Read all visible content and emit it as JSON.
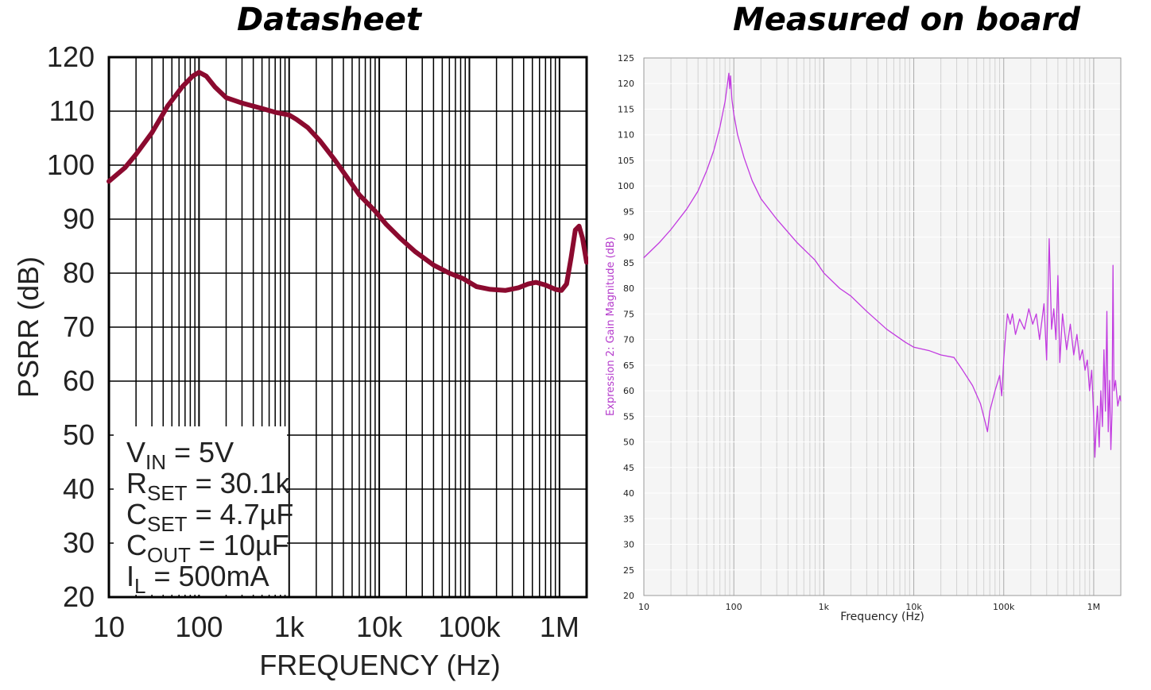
{
  "chart_data": [
    {
      "type": "line",
      "title": "Datasheet",
      "xlabel": "FREQUENCY (Hz)",
      "ylabel": "PSRR (dB)",
      "xscale": "log",
      "xlim": [
        10,
        2000000
      ],
      "ylim": [
        20,
        120
      ],
      "grid": true,
      "x_ticks": [
        {
          "value": 10,
          "label": "10"
        },
        {
          "value": 100,
          "label": "100"
        },
        {
          "value": 1000,
          "label": "1k"
        },
        {
          "value": 10000,
          "label": "10k"
        },
        {
          "value": 100000,
          "label": "100k"
        },
        {
          "value": 1000000,
          "label": "1M"
        }
      ],
      "y_ticks": [
        20,
        30,
        40,
        50,
        60,
        70,
        80,
        90,
        100,
        110,
        120
      ],
      "line_color": "#8b0a2f",
      "annotations": {
        "placement": "bottom-left",
        "lines": [
          {
            "main": "V",
            "sub": "IN",
            "rest": " = 5V"
          },
          {
            "main": "R",
            "sub": "SET",
            "rest": " = 30.1k"
          },
          {
            "main": "C",
            "sub": "SET",
            "rest": " = 4.7µF"
          },
          {
            "main": "C",
            "sub": "OUT",
            "rest": " = 10µF"
          },
          {
            "main": "I",
            "sub": "L",
            "rest": " = 500mA"
          }
        ]
      },
      "series": [
        {
          "points": [
            [
              10,
              97
            ],
            [
              15,
              99.5
            ],
            [
              20,
              102
            ],
            [
              30,
              106
            ],
            [
              45,
              111
            ],
            [
              65,
              114.5
            ],
            [
              85,
              116.5
            ],
            [
              100,
              117.2
            ],
            [
              120,
              116.5
            ],
            [
              150,
              114.5
            ],
            [
              200,
              112.5
            ],
            [
              300,
              111.5
            ],
            [
              500,
              110.5
            ],
            [
              700,
              109.8
            ],
            [
              1000,
              109.3
            ],
            [
              1200,
              108.5
            ],
            [
              1600,
              107
            ],
            [
              2200,
              104.5
            ],
            [
              3200,
              101
            ],
            [
              4500,
              97.5
            ],
            [
              6000,
              94.5
            ],
            [
              9000,
              91.5
            ],
            [
              12000,
              89
            ],
            [
              17000,
              86.5
            ],
            [
              25000,
              84
            ],
            [
              40000,
              81.5
            ],
            [
              60000,
              80
            ],
            [
              85000,
              79
            ],
            [
              120000,
              77.5
            ],
            [
              170000,
              77
            ],
            [
              250000,
              76.8
            ],
            [
              350000,
              77.3
            ],
            [
              450000,
              78
            ],
            [
              550000,
              78.3
            ],
            [
              700000,
              77.8
            ],
            [
              900000,
              77
            ],
            [
              1050000,
              76.8
            ],
            [
              1200000,
              78
            ],
            [
              1350000,
              83
            ],
            [
              1500000,
              88
            ],
            [
              1650000,
              88.7
            ],
            [
              1800000,
              86.5
            ],
            [
              2000000,
              82
            ]
          ]
        }
      ]
    },
    {
      "type": "line",
      "title": "Measured on board",
      "xlabel": "Frequency (Hz)",
      "ylabel": "Expression 2: Gain Magnitude (dB)",
      "xscale": "log",
      "xlim": [
        10,
        2000000
      ],
      "ylim": [
        20,
        125
      ],
      "grid": true,
      "x_ticks": [
        {
          "value": 10,
          "label": "10"
        },
        {
          "value": 100,
          "label": "100"
        },
        {
          "value": 1000,
          "label": "1k"
        },
        {
          "value": 10000,
          "label": "10k"
        },
        {
          "value": 100000,
          "label": "100k"
        },
        {
          "value": 1000000,
          "label": "1M"
        }
      ],
      "y_ticks": [
        20,
        25,
        30,
        35,
        40,
        45,
        50,
        55,
        60,
        65,
        70,
        75,
        80,
        85,
        90,
        95,
        100,
        105,
        110,
        115,
        120,
        125
      ],
      "line_color": "#c23be0",
      "plot_bg": "#f5f5f5",
      "series": [
        {
          "points": [
            [
              10,
              86
            ],
            [
              15,
              89
            ],
            [
              20,
              91.5
            ],
            [
              30,
              95.5
            ],
            [
              40,
              99
            ],
            [
              50,
              103
            ],
            [
              60,
              107
            ],
            [
              70,
              111.5
            ],
            [
              80,
              116.5
            ],
            [
              85,
              120
            ],
            [
              88,
              122
            ],
            [
              90,
              119
            ],
            [
              92,
              121.5
            ],
            [
              95,
              117
            ],
            [
              100,
              114
            ],
            [
              110,
              110
            ],
            [
              130,
              105.5
            ],
            [
              160,
              101
            ],
            [
              200,
              97.5
            ],
            [
              300,
              93.5
            ],
            [
              500,
              89
            ],
            [
              800,
              85.5
            ],
            [
              1000,
              83
            ],
            [
              1500,
              80
            ],
            [
              2000,
              78.5
            ],
            [
              3000,
              75.5
            ],
            [
              5000,
              72
            ],
            [
              8000,
              69.5
            ],
            [
              10000,
              68.5
            ],
            [
              15000,
              67.8
            ],
            [
              20000,
              67
            ],
            [
              28000,
              66.5
            ],
            [
              35000,
              64
            ],
            [
              45000,
              61
            ],
            [
              55000,
              57.5
            ],
            [
              62000,
              54
            ],
            [
              66000,
              52
            ],
            [
              70000,
              56
            ],
            [
              80000,
              60
            ],
            [
              90000,
              63
            ],
            [
              95000,
              59
            ],
            [
              100000,
              66
            ],
            [
              105000,
              71
            ],
            [
              110000,
              75
            ],
            [
              118000,
              73
            ],
            [
              125000,
              75
            ],
            [
              135000,
              71
            ],
            [
              150000,
              74
            ],
            [
              170000,
              72
            ],
            [
              190000,
              76
            ],
            [
              210000,
              73
            ],
            [
              230000,
              75
            ],
            [
              250000,
              70
            ],
            [
              280000,
              77
            ],
            [
              300000,
              66
            ],
            [
              320000,
              89.7
            ],
            [
              340000,
              72
            ],
            [
              360000,
              76
            ],
            [
              380000,
              70
            ],
            [
              400000,
              82.5
            ],
            [
              420000,
              65.5
            ],
            [
              450000,
              75
            ],
            [
              500000,
              68
            ],
            [
              550000,
              73
            ],
            [
              600000,
              67
            ],
            [
              650000,
              71
            ],
            [
              700000,
              66
            ],
            [
              750000,
              68
            ],
            [
              800000,
              64
            ],
            [
              850000,
              66
            ],
            [
              900000,
              60
            ],
            [
              950000,
              64
            ],
            [
              1000000,
              55
            ],
            [
              1030000,
              47
            ],
            [
              1060000,
              52
            ],
            [
              1100000,
              57
            ],
            [
              1150000,
              49
            ],
            [
              1200000,
              60
            ],
            [
              1250000,
              53
            ],
            [
              1300000,
              68
            ],
            [
              1350000,
              56
            ],
            [
              1400000,
              75.5
            ],
            [
              1450000,
              52
            ],
            [
              1500000,
              62
            ],
            [
              1550000,
              48.5
            ],
            [
              1600000,
              56
            ],
            [
              1640000,
              84.5
            ],
            [
              1680000,
              60
            ],
            [
              1750000,
              62
            ],
            [
              1850000,
              57
            ],
            [
              1950000,
              59
            ],
            [
              2000000,
              58
            ]
          ]
        }
      ]
    }
  ]
}
